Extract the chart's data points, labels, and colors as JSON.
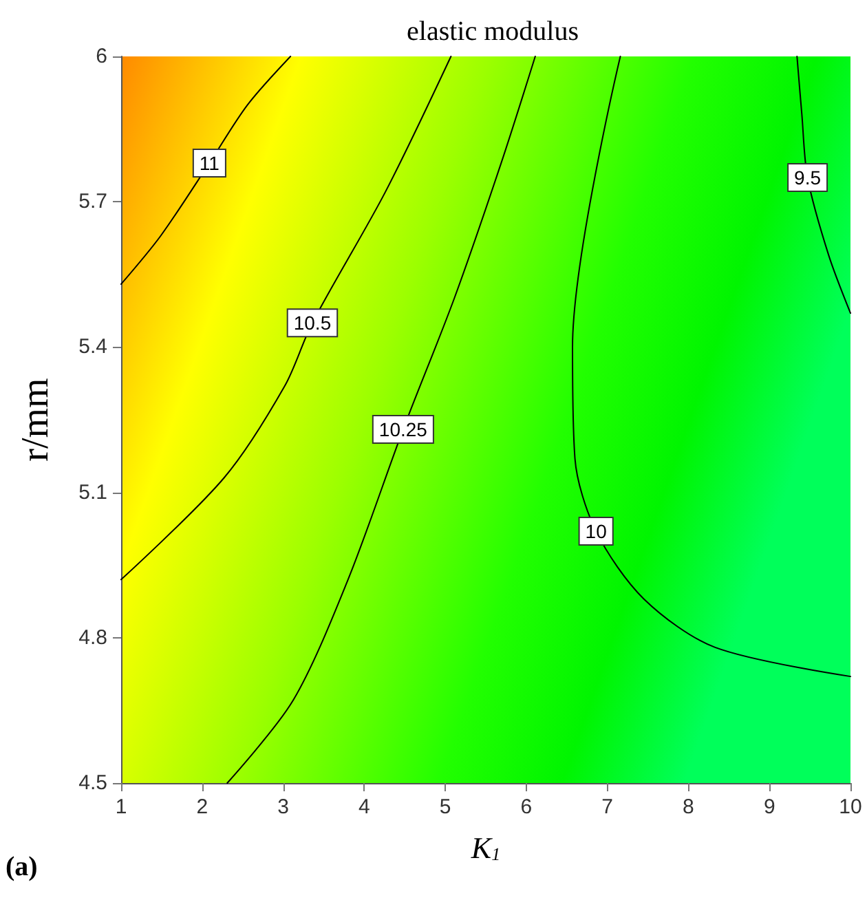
{
  "chart_data": {
    "type": "line",
    "title": "elastic modulus",
    "xlabel": "K$_{1}$",
    "ylabel": "r/mm",
    "annotations": [
      "(a)"
    ],
    "xlim": [
      1,
      10
    ],
    "xticks": [
      1,
      2,
      3,
      4,
      5,
      6,
      7,
      8,
      9,
      10
    ],
    "ylim": [
      4.5,
      6
    ],
    "yticks": [
      4.5,
      4.8,
      5.1,
      5.4,
      5.7,
      6
    ],
    "grid": false,
    "legend": false,
    "marker": "none",
    "line_style": "solid",
    "series": [
      {
        "name": "11",
        "color": "#000000",
        "x": [
          1,
          1.49,
          2.09,
          2.56,
          3.09
        ],
        "values": [
          5.53,
          5.63,
          5.78,
          5.9,
          6
        ]
      },
      {
        "name": "10.5",
        "color": "#000000",
        "x": [
          1,
          2.27,
          3.02,
          3.36,
          4.26,
          5.07
        ],
        "values": [
          4.92,
          5.13,
          5.32,
          5.45,
          5.72,
          6
        ]
      },
      {
        "name": "10.25",
        "color": "#000000",
        "x": [
          2.31,
          3.12,
          3.8,
          4.48,
          5.11,
          5.69,
          6.11
        ],
        "values": [
          4.5,
          4.67,
          4.92,
          5.23,
          5.5,
          5.78,
          6
        ]
      },
      {
        "name": "10",
        "color": "#000000",
        "x": [
          7.16,
          6.57,
          6.6,
          6.86,
          7.45,
          8.33,
          10
        ],
        "values": [
          6,
          5.4,
          5.17,
          5.02,
          4.88,
          4.78,
          4.72
        ]
      },
      {
        "name": "9.5",
        "color": "#000000",
        "x": [
          9.34,
          9.4,
          9.47,
          9.73,
          10
        ],
        "values": [
          6,
          5.88,
          5.75,
          5.59,
          5.47
        ]
      }
    ]
  }
}
